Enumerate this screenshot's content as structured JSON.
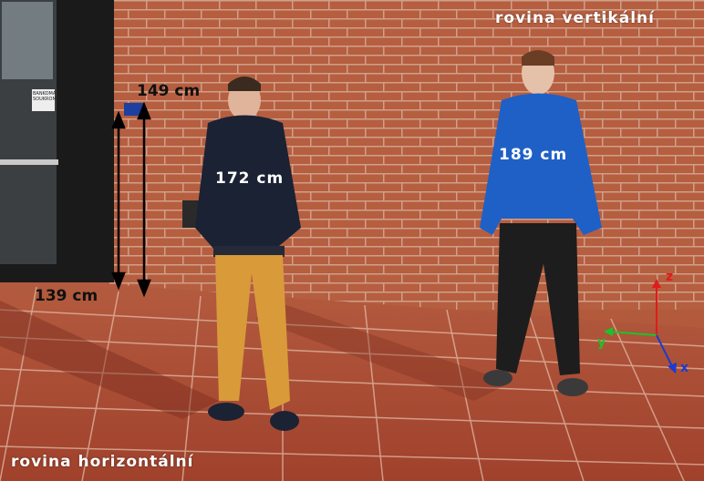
{
  "photo": {
    "description_labels": {
      "top_right": "rovina vertikální",
      "bottom_left": "rovina horizontální"
    },
    "measurements": {
      "sign_height": "149 cm",
      "door_height": "139 cm",
      "person_left": "172 cm",
      "person_right": "189 cm"
    },
    "door_sign_text": "BANKOMAT SOUKROMÁ",
    "axes": {
      "x": "x",
      "y": "y",
      "z": "z"
    },
    "colors": {
      "brick": "#b35a3c",
      "tile": "#a84a33",
      "axis_x": "#1a3bd1",
      "axis_y": "#19c42a",
      "axis_z": "#e01b1b"
    }
  }
}
